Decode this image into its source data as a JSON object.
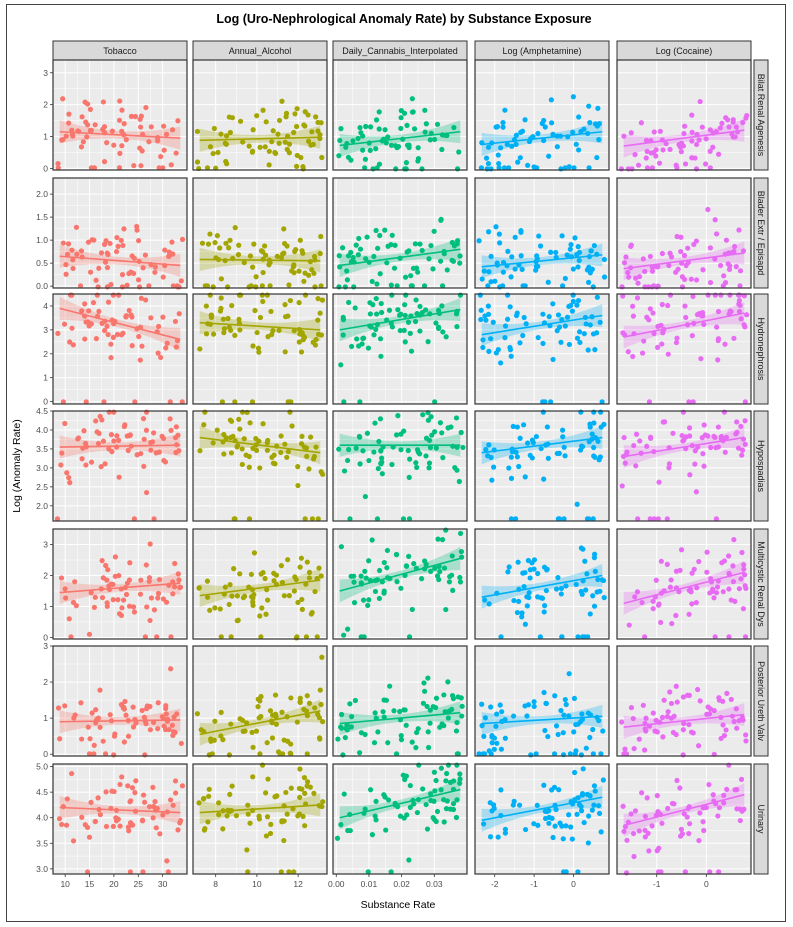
{
  "chart_data": {
    "type": "scatter",
    "title": "Log (Uro-Nephrological Anomaly Rate) by Substance Exposure",
    "xlabel": "Substance Rate",
    "ylabel": "Log (Anomaly Rate)",
    "grid": true,
    "legend": "none",
    "smoother": "linear fit with confidence band",
    "columns": [
      {
        "label": "Tobacco",
        "color": "#F8766D",
        "xlim": [
          7.5,
          35
        ],
        "xticks": [
          10,
          15,
          20,
          25,
          30
        ],
        "xticklabels": [
          "10",
          "15",
          "20",
          "25",
          "30"
        ]
      },
      {
        "label": "Annual_Alcohol",
        "color": "#A3A500",
        "xlim": [
          6.9,
          13.4
        ],
        "xticks": [
          8,
          10,
          12
        ],
        "xticklabels": [
          "8",
          "10",
          "12"
        ]
      },
      {
        "label": "Daily_Cannabis_Interpolated",
        "color": "#00BF7D",
        "xlim": [
          -0.001,
          0.04
        ],
        "xticks": [
          0,
          0.01,
          0.02,
          0.03
        ],
        "xticklabels": [
          "0.00",
          "0.01",
          "0.02",
          "0.03"
        ]
      },
      {
        "label": "Log (Amphetamine)",
        "color": "#00B0F6",
        "xlim": [
          -2.5,
          0.9
        ],
        "xticks": [
          -2,
          -1,
          0
        ],
        "xticklabels": [
          "-2",
          "-1",
          "0"
        ]
      },
      {
        "label": "Log (Cocaine)",
        "color": "#E76BF3",
        "xlim": [
          -1.8,
          0.9
        ],
        "xticks": [
          -1,
          0
        ],
        "xticklabels": [
          "-1",
          "0"
        ]
      }
    ],
    "rows": [
      {
        "label": "Bilat Renal Agenesis",
        "ylim": [
          -0.05,
          3.4
        ],
        "yticks": [
          0,
          1,
          2,
          3
        ],
        "yticklabels": [
          "0",
          "1",
          "2",
          "3"
        ],
        "fits": [
          [
            1.15,
            0.95
          ],
          [
            0.88,
            0.98
          ],
          [
            0.72,
            1.15
          ],
          [
            0.75,
            1.15
          ],
          [
            0.7,
            1.2
          ]
        ]
      },
      {
        "label": "Blader Extr / Episapd",
        "ylim": [
          -0.04,
          2.35
        ],
        "yticks": [
          0,
          0.5,
          1,
          1.5,
          2
        ],
        "yticklabels": [
          "0.0",
          "0.5",
          "1.0",
          "1.5",
          "2.0"
        ],
        "fits": [
          [
            0.65,
            0.45
          ],
          [
            0.58,
            0.55
          ],
          [
            0.45,
            0.8
          ],
          [
            0.42,
            0.68
          ],
          [
            0.38,
            0.72
          ]
        ]
      },
      {
        "label": "Hydronephrosis",
        "ylim": [
          -0.1,
          4.5
        ],
        "yticks": [
          0,
          1,
          2,
          3,
          4
        ],
        "yticklabels": [
          "0",
          "1",
          "2",
          "3",
          "4"
        ],
        "fits": [
          [
            3.9,
            2.6
          ],
          [
            3.3,
            3.0
          ],
          [
            3.0,
            3.85
          ],
          [
            2.8,
            3.6
          ],
          [
            2.7,
            3.7
          ]
        ]
      },
      {
        "label": "Hypospadias",
        "ylim": [
          1.6,
          4.5
        ],
        "yticks": [
          2,
          2.5,
          3,
          3.5,
          4,
          4.5
        ],
        "yticklabels": [
          "2.0",
          "2.5",
          "3.0",
          "3.5",
          "4.0",
          "4.5"
        ],
        "fits": [
          [
            3.55,
            3.6
          ],
          [
            3.8,
            3.4
          ],
          [
            3.6,
            3.6
          ],
          [
            3.4,
            3.8
          ],
          [
            3.3,
            3.8
          ]
        ]
      },
      {
        "label": "Multicystic Renal Dys",
        "ylim": [
          -0.05,
          3.5
        ],
        "yticks": [
          0,
          1,
          2,
          3
        ],
        "yticklabels": [
          "0",
          "1",
          "2",
          "3"
        ],
        "fits": [
          [
            1.45,
            1.75
          ],
          [
            1.35,
            1.85
          ],
          [
            1.5,
            2.55
          ],
          [
            1.3,
            2.0
          ],
          [
            1.1,
            2.1
          ]
        ]
      },
      {
        "label": "Posterior Ureth Valv",
        "ylim": [
          -0.05,
          3.0
        ],
        "yticks": [
          0,
          1,
          2,
          3
        ],
        "yticklabels": [
          "0",
          "1",
          "2",
          "3"
        ],
        "fits": [
          [
            0.9,
            0.95
          ],
          [
            0.55,
            1.2
          ],
          [
            0.85,
            1.15
          ],
          [
            0.85,
            1.05
          ],
          [
            0.75,
            1.1
          ]
        ]
      },
      {
        "label": "Urinary",
        "ylim": [
          2.9,
          5.05
        ],
        "yticks": [
          3,
          3.5,
          4,
          4.5,
          5
        ],
        "yticklabels": [
          "3.0",
          "3.5",
          "4.0",
          "4.5",
          "5.0"
        ],
        "fits": [
          [
            4.2,
            4.1
          ],
          [
            4.1,
            4.25
          ],
          [
            4.0,
            4.55
          ],
          [
            3.95,
            4.4
          ],
          [
            3.85,
            4.45
          ]
        ]
      }
    ]
  }
}
